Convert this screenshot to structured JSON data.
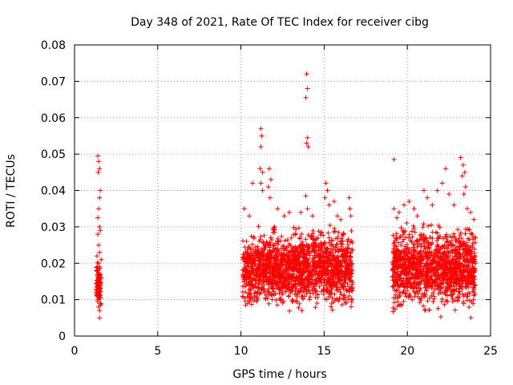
{
  "chart_data": {
    "type": "scatter",
    "title": "Day 348 of 2021, Rate Of TEC Index for receiver cibg",
    "xlabel": "GPS time / hours",
    "ylabel": "ROTI / TECUs",
    "xlim": [
      0,
      25
    ],
    "ylim": [
      0,
      0.08
    ],
    "grid": true,
    "marker": "+",
    "color": "#ff0000",
    "x_ticks": [
      {
        "value": 0,
        "label": "0"
      },
      {
        "value": 5,
        "label": "5"
      },
      {
        "value": 10,
        "label": "10"
      },
      {
        "value": 15,
        "label": "15"
      },
      {
        "value": 20,
        "label": "20"
      },
      {
        "value": 25,
        "label": "25"
      }
    ],
    "y_ticks": [
      {
        "value": 0,
        "label": "0"
      },
      {
        "value": 0.01,
        "label": "0.01"
      },
      {
        "value": 0.02,
        "label": "0.02"
      },
      {
        "value": 0.03,
        "label": "0.03"
      },
      {
        "value": 0.04,
        "label": "0.04"
      },
      {
        "value": 0.05,
        "label": "0.05"
      },
      {
        "value": 0.06,
        "label": "0.06"
      },
      {
        "value": 0.07,
        "label": "0.07"
      },
      {
        "value": 0.08,
        "label": "0.08"
      }
    ],
    "series": [
      {
        "name": "ROTI",
        "points": [
          [
            1.4,
            0.0495
          ],
          [
            1.45,
            0.048
          ],
          [
            1.5,
            0.046
          ],
          [
            1.42,
            0.045
          ],
          [
            1.55,
            0.04
          ],
          [
            1.5,
            0.038
          ],
          [
            1.45,
            0.035
          ],
          [
            1.4,
            0.0325
          ],
          [
            1.5,
            0.03
          ],
          [
            1.55,
            0.029
          ],
          [
            1.4,
            0.028
          ],
          [
            1.45,
            0.025
          ],
          [
            1.5,
            0.023
          ],
          [
            1.35,
            0.022
          ],
          [
            1.6,
            0.021
          ],
          [
            1.45,
            0.02
          ],
          [
            1.5,
            0.019
          ],
          [
            1.4,
            0.018
          ],
          [
            1.55,
            0.017
          ],
          [
            1.45,
            0.016
          ],
          [
            1.5,
            0.015
          ],
          [
            1.4,
            0.014
          ],
          [
            1.55,
            0.013
          ],
          [
            1.45,
            0.012
          ],
          [
            1.5,
            0.011
          ],
          [
            1.4,
            0.01
          ],
          [
            1.55,
            0.009
          ],
          [
            1.45,
            0.008
          ],
          [
            1.5,
            0.007
          ],
          [
            1.5,
            0.005
          ],
          [
            11.2,
            0.057
          ],
          [
            11.25,
            0.055
          ],
          [
            11.2,
            0.052
          ],
          [
            11.15,
            0.046
          ],
          [
            11.3,
            0.045
          ],
          [
            11.2,
            0.042
          ],
          [
            11.3,
            0.04
          ],
          [
            11.7,
            0.046
          ],
          [
            11.8,
            0.043
          ],
          [
            11.65,
            0.041
          ],
          [
            11.75,
            0.038
          ],
          [
            10.7,
            0.042
          ],
          [
            10.2,
            0.035
          ],
          [
            10.5,
            0.033
          ],
          [
            12.2,
            0.035
          ],
          [
            12.6,
            0.033
          ],
          [
            12.9,
            0.034
          ],
          [
            13.95,
            0.072
          ],
          [
            14.0,
            0.068
          ],
          [
            13.9,
            0.0655
          ],
          [
            14.0,
            0.0545
          ],
          [
            13.95,
            0.053
          ],
          [
            14.05,
            0.052
          ],
          [
            13.9,
            0.0385
          ],
          [
            14.0,
            0.035
          ],
          [
            13.6,
            0.034
          ],
          [
            14.3,
            0.033
          ],
          [
            15.1,
            0.042
          ],
          [
            15.2,
            0.04
          ],
          [
            15.05,
            0.038
          ],
          [
            15.3,
            0.036
          ],
          [
            15.6,
            0.037
          ],
          [
            16.5,
            0.038
          ],
          [
            16.55,
            0.035
          ],
          [
            16.6,
            0.033
          ],
          [
            16.0,
            0.032
          ],
          [
            15.8,
            0.033
          ],
          [
            19.2,
            0.0485
          ],
          [
            19.2,
            0.035
          ],
          [
            19.5,
            0.034
          ],
          [
            19.8,
            0.036
          ],
          [
            20.1,
            0.037
          ],
          [
            20.4,
            0.035
          ],
          [
            20.6,
            0.033
          ],
          [
            21.0,
            0.04
          ],
          [
            21.2,
            0.038
          ],
          [
            21.5,
            0.036
          ],
          [
            21.8,
            0.04
          ],
          [
            22.1,
            0.042
          ],
          [
            22.3,
            0.046
          ],
          [
            22.5,
            0.039
          ],
          [
            22.8,
            0.036
          ],
          [
            23.2,
            0.049
          ],
          [
            23.35,
            0.047
          ],
          [
            23.45,
            0.045
          ],
          [
            23.3,
            0.044
          ],
          [
            23.5,
            0.041
          ],
          [
            23.4,
            0.039
          ],
          [
            23.6,
            0.035
          ],
          [
            23.8,
            0.034
          ],
          [
            24.0,
            0.032
          ]
        ],
        "clusters": [
          {
            "x_range": [
              10.1,
              16.7
            ],
            "y_range": [
              0.0055,
              0.032
            ]
          },
          {
            "x_range": [
              19.1,
              24.1
            ],
            "y_range": [
              0.0045,
              0.033
            ]
          },
          {
            "x_range": [
              1.3,
              1.6
            ],
            "y_range": [
              0.006,
              0.022
            ]
          }
        ]
      }
    ]
  }
}
